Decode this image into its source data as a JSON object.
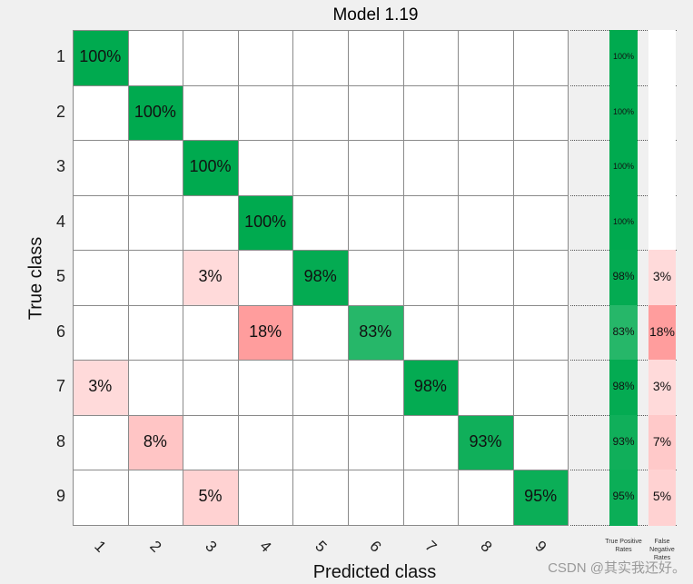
{
  "chart_data": {
    "type": "heatmap",
    "title": "Model 1.19",
    "xlabel": "Predicted class",
    "ylabel": "True class",
    "classes": [
      "1",
      "2",
      "3",
      "4",
      "5",
      "6",
      "7",
      "8",
      "9"
    ],
    "values": [
      [
        100,
        0,
        0,
        0,
        0,
        0,
        0,
        0,
        0
      ],
      [
        0,
        100,
        0,
        0,
        0,
        0,
        0,
        0,
        0
      ],
      [
        0,
        0,
        100,
        0,
        0,
        0,
        0,
        0,
        0
      ],
      [
        0,
        0,
        0,
        100,
        0,
        0,
        0,
        0,
        0
      ],
      [
        0,
        0,
        3,
        0,
        98,
        0,
        0,
        0,
        0
      ],
      [
        0,
        0,
        0,
        18,
        0,
        83,
        0,
        0,
        0
      ],
      [
        3,
        0,
        0,
        0,
        0,
        0,
        98,
        0,
        0
      ],
      [
        0,
        8,
        0,
        0,
        0,
        0,
        0,
        93,
        0
      ],
      [
        0,
        0,
        5,
        0,
        0,
        0,
        0,
        0,
        95
      ]
    ],
    "value_suffix": "%",
    "true_positive_rates": [
      100,
      100,
      100,
      100,
      98,
      83,
      98,
      93,
      95
    ],
    "false_negative_rates": [
      0,
      0,
      0,
      0,
      3,
      18,
      3,
      7,
      5
    ],
    "summary_headers": [
      "True Positive Rates",
      "False Negative Rates"
    ],
    "colors": {
      "positive": "#00aa4f",
      "negative": "#ff9a9a",
      "empty": "#ffffff"
    }
  },
  "watermark": "CSDN @其实我还好。"
}
